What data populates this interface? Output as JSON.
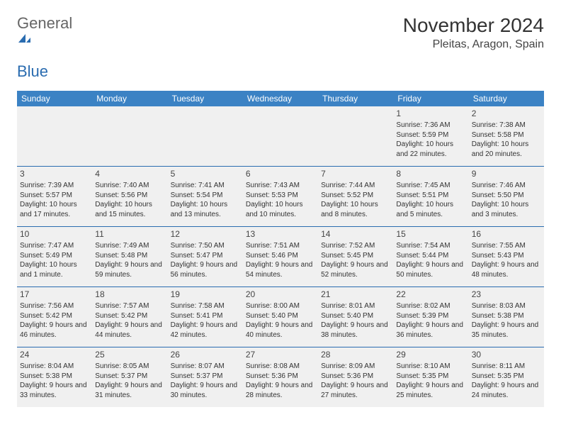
{
  "logo": {
    "textGray": "General",
    "textBlue": "Blue"
  },
  "header": {
    "title": "November 2024",
    "location": "Pleitas, Aragon, Spain"
  },
  "colors": {
    "headerBlue": "#3b82c4",
    "ruleBlue": "#2a6cb0",
    "cellBg": "#f0f0f0",
    "text": "#333333"
  },
  "daysOfWeek": [
    "Sunday",
    "Monday",
    "Tuesday",
    "Wednesday",
    "Thursday",
    "Friday",
    "Saturday"
  ],
  "weeks": [
    [
      null,
      null,
      null,
      null,
      null,
      {
        "n": "1",
        "sr": "Sunrise: 7:36 AM",
        "ss": "Sunset: 5:59 PM",
        "dl": "Daylight: 10 hours and 22 minutes."
      },
      {
        "n": "2",
        "sr": "Sunrise: 7:38 AM",
        "ss": "Sunset: 5:58 PM",
        "dl": "Daylight: 10 hours and 20 minutes."
      }
    ],
    [
      {
        "n": "3",
        "sr": "Sunrise: 7:39 AM",
        "ss": "Sunset: 5:57 PM",
        "dl": "Daylight: 10 hours and 17 minutes."
      },
      {
        "n": "4",
        "sr": "Sunrise: 7:40 AM",
        "ss": "Sunset: 5:56 PM",
        "dl": "Daylight: 10 hours and 15 minutes."
      },
      {
        "n": "5",
        "sr": "Sunrise: 7:41 AM",
        "ss": "Sunset: 5:54 PM",
        "dl": "Daylight: 10 hours and 13 minutes."
      },
      {
        "n": "6",
        "sr": "Sunrise: 7:43 AM",
        "ss": "Sunset: 5:53 PM",
        "dl": "Daylight: 10 hours and 10 minutes."
      },
      {
        "n": "7",
        "sr": "Sunrise: 7:44 AM",
        "ss": "Sunset: 5:52 PM",
        "dl": "Daylight: 10 hours and 8 minutes."
      },
      {
        "n": "8",
        "sr": "Sunrise: 7:45 AM",
        "ss": "Sunset: 5:51 PM",
        "dl": "Daylight: 10 hours and 5 minutes."
      },
      {
        "n": "9",
        "sr": "Sunrise: 7:46 AM",
        "ss": "Sunset: 5:50 PM",
        "dl": "Daylight: 10 hours and 3 minutes."
      }
    ],
    [
      {
        "n": "10",
        "sr": "Sunrise: 7:47 AM",
        "ss": "Sunset: 5:49 PM",
        "dl": "Daylight: 10 hours and 1 minute."
      },
      {
        "n": "11",
        "sr": "Sunrise: 7:49 AM",
        "ss": "Sunset: 5:48 PM",
        "dl": "Daylight: 9 hours and 59 minutes."
      },
      {
        "n": "12",
        "sr": "Sunrise: 7:50 AM",
        "ss": "Sunset: 5:47 PM",
        "dl": "Daylight: 9 hours and 56 minutes."
      },
      {
        "n": "13",
        "sr": "Sunrise: 7:51 AM",
        "ss": "Sunset: 5:46 PM",
        "dl": "Daylight: 9 hours and 54 minutes."
      },
      {
        "n": "14",
        "sr": "Sunrise: 7:52 AM",
        "ss": "Sunset: 5:45 PM",
        "dl": "Daylight: 9 hours and 52 minutes."
      },
      {
        "n": "15",
        "sr": "Sunrise: 7:54 AM",
        "ss": "Sunset: 5:44 PM",
        "dl": "Daylight: 9 hours and 50 minutes."
      },
      {
        "n": "16",
        "sr": "Sunrise: 7:55 AM",
        "ss": "Sunset: 5:43 PM",
        "dl": "Daylight: 9 hours and 48 minutes."
      }
    ],
    [
      {
        "n": "17",
        "sr": "Sunrise: 7:56 AM",
        "ss": "Sunset: 5:42 PM",
        "dl": "Daylight: 9 hours and 46 minutes."
      },
      {
        "n": "18",
        "sr": "Sunrise: 7:57 AM",
        "ss": "Sunset: 5:42 PM",
        "dl": "Daylight: 9 hours and 44 minutes."
      },
      {
        "n": "19",
        "sr": "Sunrise: 7:58 AM",
        "ss": "Sunset: 5:41 PM",
        "dl": "Daylight: 9 hours and 42 minutes."
      },
      {
        "n": "20",
        "sr": "Sunrise: 8:00 AM",
        "ss": "Sunset: 5:40 PM",
        "dl": "Daylight: 9 hours and 40 minutes."
      },
      {
        "n": "21",
        "sr": "Sunrise: 8:01 AM",
        "ss": "Sunset: 5:40 PM",
        "dl": "Daylight: 9 hours and 38 minutes."
      },
      {
        "n": "22",
        "sr": "Sunrise: 8:02 AM",
        "ss": "Sunset: 5:39 PM",
        "dl": "Daylight: 9 hours and 36 minutes."
      },
      {
        "n": "23",
        "sr": "Sunrise: 8:03 AM",
        "ss": "Sunset: 5:38 PM",
        "dl": "Daylight: 9 hours and 35 minutes."
      }
    ],
    [
      {
        "n": "24",
        "sr": "Sunrise: 8:04 AM",
        "ss": "Sunset: 5:38 PM",
        "dl": "Daylight: 9 hours and 33 minutes."
      },
      {
        "n": "25",
        "sr": "Sunrise: 8:05 AM",
        "ss": "Sunset: 5:37 PM",
        "dl": "Daylight: 9 hours and 31 minutes."
      },
      {
        "n": "26",
        "sr": "Sunrise: 8:07 AM",
        "ss": "Sunset: 5:37 PM",
        "dl": "Daylight: 9 hours and 30 minutes."
      },
      {
        "n": "27",
        "sr": "Sunrise: 8:08 AM",
        "ss": "Sunset: 5:36 PM",
        "dl": "Daylight: 9 hours and 28 minutes."
      },
      {
        "n": "28",
        "sr": "Sunrise: 8:09 AM",
        "ss": "Sunset: 5:36 PM",
        "dl": "Daylight: 9 hours and 27 minutes."
      },
      {
        "n": "29",
        "sr": "Sunrise: 8:10 AM",
        "ss": "Sunset: 5:35 PM",
        "dl": "Daylight: 9 hours and 25 minutes."
      },
      {
        "n": "30",
        "sr": "Sunrise: 8:11 AM",
        "ss": "Sunset: 5:35 PM",
        "dl": "Daylight: 9 hours and 24 minutes."
      }
    ]
  ]
}
